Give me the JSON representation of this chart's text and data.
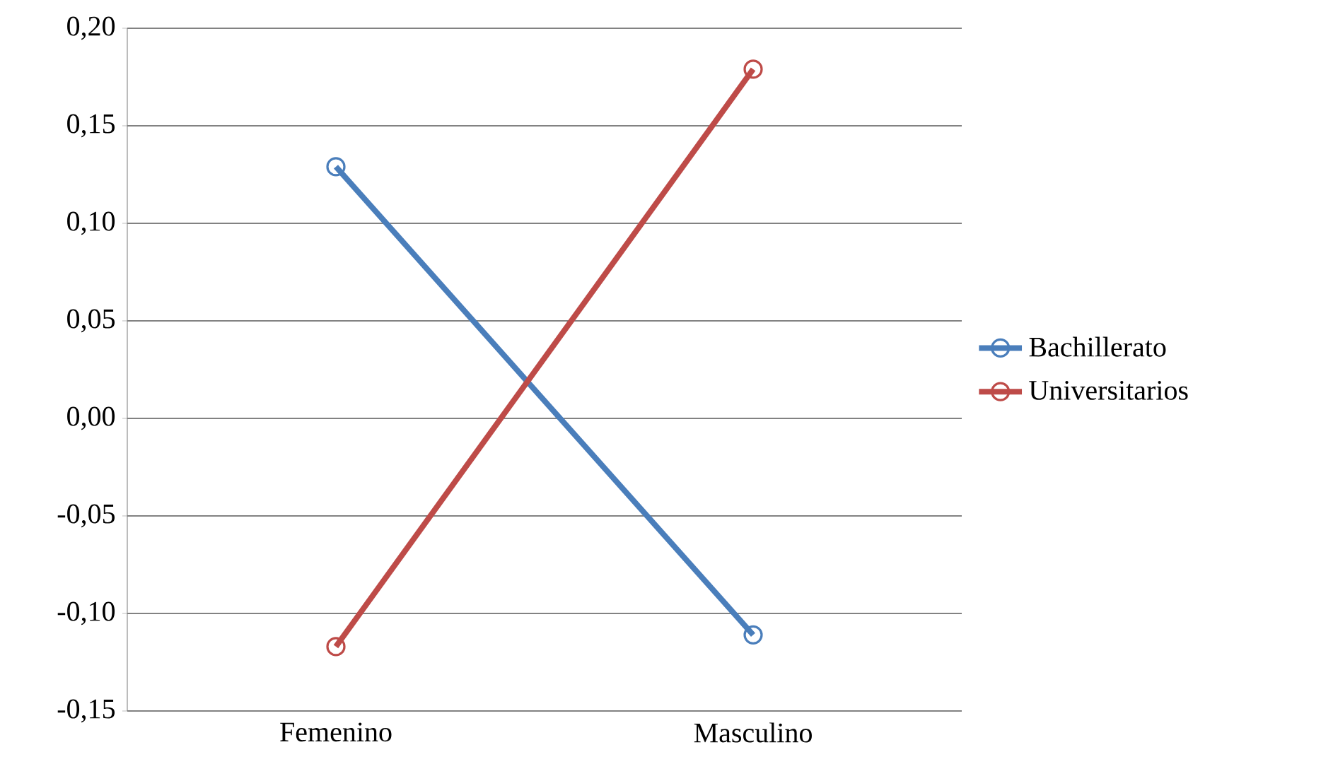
{
  "chart_data": {
    "type": "line",
    "categories": [
      "Femenino",
      "Masculino"
    ],
    "series": [
      {
        "name": "Bachillerato",
        "color": "#4a7ebb",
        "values": [
          0.129,
          -0.111
        ]
      },
      {
        "name": "Universitarios",
        "color": "#be4b48",
        "values": [
          -0.117,
          0.179
        ]
      }
    ],
    "ylim": [
      -0.15,
      0.2
    ],
    "yticks": [
      {
        "value": -0.15,
        "label": "-0,15"
      },
      {
        "value": -0.1,
        "label": "-0,10"
      },
      {
        "value": -0.05,
        "label": "-0,05"
      },
      {
        "value": 0,
        "label": "0,00"
      },
      {
        "value": 0.05,
        "label": "0,05"
      },
      {
        "value": 0.1,
        "label": "0,10"
      },
      {
        "value": 0.15,
        "label": "0,15"
      },
      {
        "value": 0.2,
        "label": "0,20"
      }
    ],
    "grid": "y",
    "legend": "right",
    "marker": "circle",
    "line_style": "solid"
  }
}
